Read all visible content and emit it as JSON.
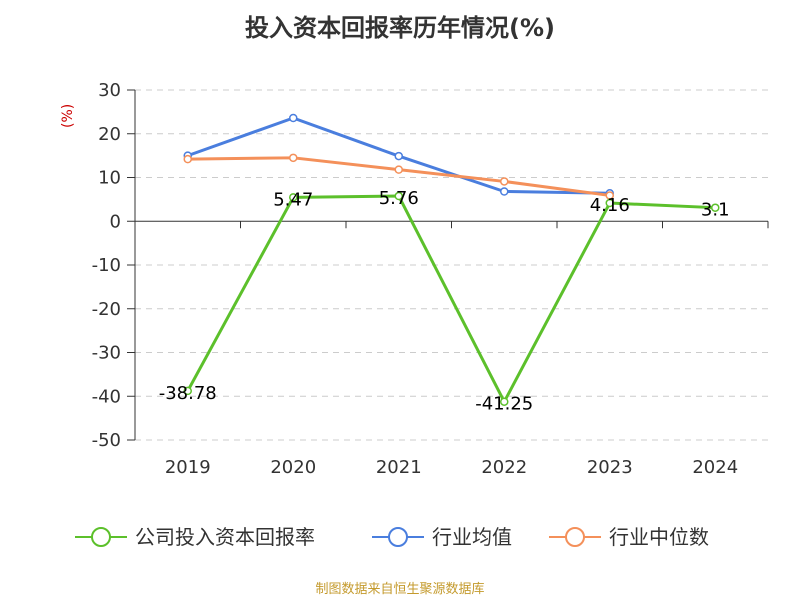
{
  "chart_data": {
    "type": "line",
    "title": "投入资本回报率历年情况(%)",
    "unit_label": "(%)",
    "categories": [
      "2019",
      "2020",
      "2021",
      "2022",
      "2023",
      "2024"
    ],
    "ylim": [
      -50,
      30
    ],
    "yticks": [
      30,
      20,
      10,
      0,
      -10,
      -20,
      -30,
      -40,
      -50
    ],
    "grid": "horizontal-dashed",
    "legend_position": "bottom",
    "series": [
      {
        "name": "公司投入资本回报率",
        "color": "#5cc02b",
        "values": [
          -38.78,
          5.47,
          5.76,
          -41.25,
          4.16,
          3.1
        ],
        "labels": [
          "-38.78",
          "5.47",
          "5.76",
          "-41.25",
          "4.16",
          "3.1"
        ]
      },
      {
        "name": "行业均值",
        "color": "#4a7ede",
        "values": [
          15.0,
          23.6,
          14.9,
          6.8,
          6.4,
          null
        ]
      },
      {
        "name": "行业中位数",
        "color": "#f4905a",
        "values": [
          14.2,
          14.5,
          11.8,
          9.1,
          5.9,
          null
        ]
      }
    ],
    "source": "制图数据来自恒生聚源数据库"
  }
}
